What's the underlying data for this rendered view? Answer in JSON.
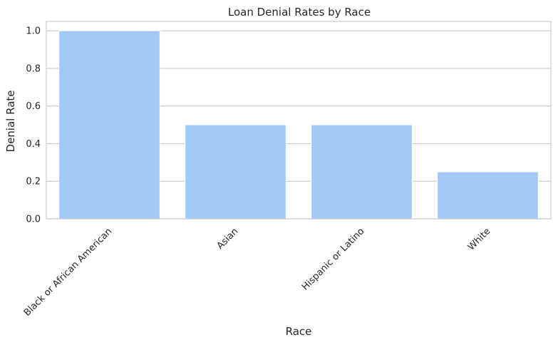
{
  "chart_data": {
    "type": "bar",
    "title": "Loan Denial Rates by Race",
    "xlabel": "Race",
    "ylabel": "Denial Rate",
    "categories": [
      "Black or African American",
      "Asian",
      "Hispanic or Latino",
      "White"
    ],
    "values": [
      1.0,
      0.5,
      0.5,
      0.25
    ],
    "ylim": [
      0,
      1.05
    ],
    "yticks": [
      "0.0",
      "0.2",
      "0.4",
      "0.6",
      "0.8",
      "1.0"
    ],
    "grid": "horizontal",
    "legend": "none",
    "colors": {
      "bar": "#a1c9f4",
      "grid": "#cccccc",
      "spine": "#cccccc",
      "text": "#262626",
      "background": "#ffffff"
    }
  }
}
